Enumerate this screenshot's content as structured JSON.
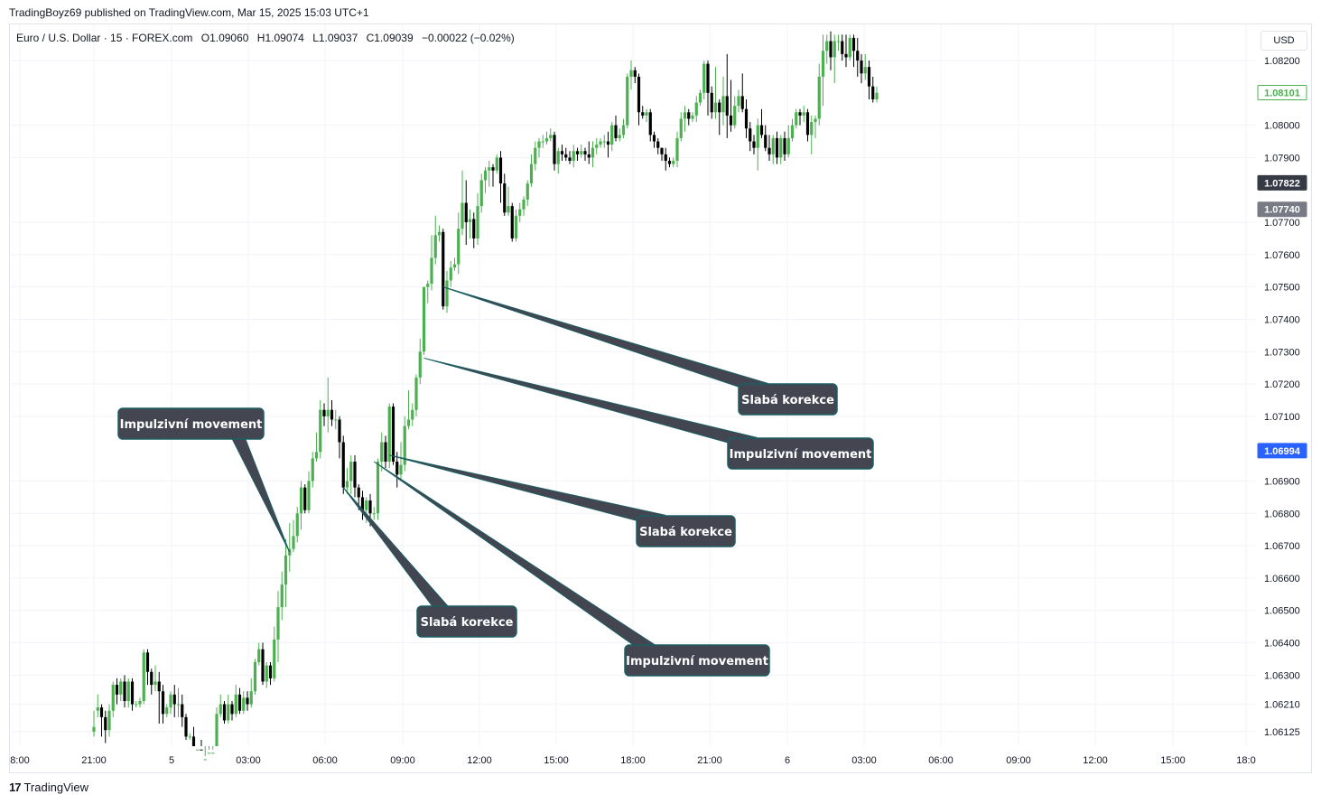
{
  "header": {
    "published": "TradingBoyz69 published on TradingView.com, Mar 15, 2025 15:03 UTC+1"
  },
  "legend": {
    "symbol": "Euro / U.S. Dollar · 15 · FOREX.com",
    "open": "O1.09060",
    "high": "H1.09074",
    "low": "L1.09037",
    "close": "C1.09039",
    "change": "−0.00022 (−0.02%)"
  },
  "currency": "USD",
  "brand": {
    "logo": "17",
    "name": "TradingView"
  },
  "colors": {
    "up": "#4caf50",
    "down": "#000000",
    "grid": "#f0f3fa",
    "callout_bg": "#434651",
    "callout_border": "#1b5e63",
    "callout_line": "#1b5e63"
  },
  "chart_data": {
    "type": "candlestick",
    "y_axis": {
      "labels": [
        {
          "text": "1.08200",
          "value": 1.082
        },
        {
          "text": "1.08000",
          "value": 1.08
        },
        {
          "text": "1.07900",
          "value": 1.079
        },
        {
          "text": "1.07700",
          "value": 1.077
        },
        {
          "text": "1.07600",
          "value": 1.076
        },
        {
          "text": "1.07500",
          "value": 1.075
        },
        {
          "text": "1.07400",
          "value": 1.074
        },
        {
          "text": "1.07300",
          "value": 1.073
        },
        {
          "text": "1.07200",
          "value": 1.072
        },
        {
          "text": "1.07100",
          "value": 1.071
        },
        {
          "text": "1.06900",
          "value": 1.069
        },
        {
          "text": "1.06800",
          "value": 1.068
        },
        {
          "text": "1.06700",
          "value": 1.067
        },
        {
          "text": "1.06600",
          "value": 1.066
        },
        {
          "text": "1.06500",
          "value": 1.065
        },
        {
          "text": "1.06400",
          "value": 1.064
        },
        {
          "text": "1.06300",
          "value": 1.063
        },
        {
          "text": "1.06210",
          "value": 1.0621
        },
        {
          "text": "1.06125",
          "value": 1.06125
        }
      ],
      "price_tags": [
        {
          "text": "1.08101",
          "value": 1.08101,
          "style": "outline-green"
        },
        {
          "text": "1.07822",
          "value": 1.07822,
          "style": "dark"
        },
        {
          "text": "1.07740",
          "value": 1.0774,
          "style": "gray"
        },
        {
          "text": "1.06994",
          "value": 1.06994,
          "style": "blue"
        }
      ]
    },
    "x_axis": {
      "labels": [
        "8:00",
        "21:00",
        "5",
        "03:00",
        "06:00",
        "09:00",
        "12:00",
        "15:00",
        "18:00",
        "21:00",
        "6",
        "03:00",
        "06:00",
        "09:00",
        "12:00",
        "15:00",
        "18:0"
      ]
    },
    "candles": [
      [
        1.06125,
        1.0614,
        1.0611,
        1.0619
      ],
      [
        1.0619,
        1.062,
        1.0617,
        1.0624
      ],
      [
        1.062,
        1.0617,
        1.0611,
        1.0621
      ],
      [
        1.0617,
        1.0613,
        1.0609,
        1.0619
      ],
      [
        1.0613,
        1.0619,
        1.0611,
        1.0621
      ],
      [
        1.0619,
        1.0627,
        1.0617,
        1.0628
      ],
      [
        1.0627,
        1.0624,
        1.0621,
        1.0629
      ],
      [
        1.0624,
        1.0628,
        1.0622,
        1.0629
      ],
      [
        1.0628,
        1.0622,
        1.062,
        1.063
      ],
      [
        1.0622,
        1.0628,
        1.062,
        1.0629
      ],
      [
        1.0628,
        1.0621,
        1.0619,
        1.0629
      ],
      [
        1.0621,
        1.0621,
        1.062,
        1.0622
      ],
      [
        1.0621,
        1.0622,
        1.062,
        1.0623
      ],
      [
        1.0622,
        1.0637,
        1.0621,
        1.0638
      ],
      [
        1.0637,
        1.0631,
        1.0627,
        1.0638
      ],
      [
        1.0631,
        1.0627,
        1.0624,
        1.0632
      ],
      [
        1.0627,
        1.0628,
        1.0625,
        1.0633
      ],
      [
        1.0628,
        1.0625,
        1.0615,
        1.0631
      ],
      [
        1.0625,
        1.0618,
        1.0615,
        1.0627
      ],
      [
        1.0618,
        1.062,
        1.0617,
        1.0621
      ],
      [
        1.062,
        1.0624,
        1.0618,
        1.0625
      ],
      [
        1.0624,
        1.0621,
        1.0617,
        1.0627
      ],
      [
        1.0621,
        1.0621,
        1.0617,
        1.0626
      ],
      [
        1.0621,
        1.0617,
        1.0614,
        1.0624
      ],
      [
        1.0617,
        1.0611,
        1.061,
        1.0618
      ],
      [
        1.0611,
        1.0611,
        1.061,
        1.0612
      ],
      [
        1.0611,
        1.0607,
        1.0605,
        1.0614
      ],
      [
        1.0607,
        1.0607,
        1.0605,
        1.0608
      ],
      [
        1.0607,
        1.0604,
        1.0603,
        1.061
      ],
      [
        1.0604,
        1.0604,
        1.0603,
        1.0605
      ],
      [
        1.0604,
        1.0606,
        1.0603,
        1.0607
      ],
      [
        1.0606,
        1.0606,
        1.0605,
        1.0607
      ],
      [
        1.0606,
        1.0618,
        1.0605,
        1.062
      ],
      [
        1.0618,
        1.0621,
        1.0617,
        1.0624
      ],
      [
        1.0621,
        1.0616,
        1.0615,
        1.0622
      ],
      [
        1.0616,
        1.0621,
        1.0615,
        1.0624
      ],
      [
        1.0621,
        1.0618,
        1.0616,
        1.0622
      ],
      [
        1.0618,
        1.0624,
        1.0617,
        1.0627
      ],
      [
        1.0624,
        1.0619,
        1.0618,
        1.0626
      ],
      [
        1.0619,
        1.0623,
        1.0618,
        1.0625
      ],
      [
        1.0623,
        1.0621,
        1.0619,
        1.0625
      ],
      [
        1.0621,
        1.0625,
        1.062,
        1.0629
      ],
      [
        1.0625,
        1.0634,
        1.0624,
        1.0635
      ],
      [
        1.0634,
        1.0638,
        1.0633,
        1.064
      ],
      [
        1.0638,
        1.0628,
        1.0627,
        1.064
      ],
      [
        1.0628,
        1.0633,
        1.0626,
        1.0634
      ],
      [
        1.0633,
        1.0629,
        1.0627,
        1.0634
      ],
      [
        1.0629,
        1.0641,
        1.0628,
        1.0645
      ],
      [
        1.0641,
        1.0651,
        1.0634,
        1.0656
      ],
      [
        1.0651,
        1.0658,
        1.0647,
        1.0662
      ],
      [
        1.0658,
        1.0667,
        1.0651,
        1.0672
      ],
      [
        1.0667,
        1.0669,
        1.0662,
        1.0677
      ],
      [
        1.0669,
        1.0673,
        1.0668,
        1.0678
      ],
      [
        1.0673,
        1.068,
        1.0671,
        1.0682
      ],
      [
        1.068,
        1.0688,
        1.0675,
        1.069
      ],
      [
        1.0688,
        1.0681,
        1.068,
        1.0689
      ],
      [
        1.0681,
        1.069,
        1.068,
        1.0693
      ],
      [
        1.069,
        1.0697,
        1.0688,
        1.0699
      ],
      [
        1.0697,
        1.0699,
        1.0696,
        1.0705
      ],
      [
        1.0699,
        1.0712,
        1.0697,
        1.0715
      ],
      [
        1.0712,
        1.071,
        1.0707,
        1.0714
      ],
      [
        1.071,
        1.0712,
        1.0705,
        1.0722
      ],
      [
        1.0712,
        1.0709,
        1.0707,
        1.0715
      ],
      [
        1.0709,
        1.0709,
        1.0706,
        1.0712
      ],
      [
        1.0709,
        1.0702,
        1.0697,
        1.071
      ],
      [
        1.0702,
        1.0688,
        1.0686,
        1.0704
      ],
      [
        1.0688,
        1.069,
        1.0686,
        1.0694
      ],
      [
        1.069,
        1.0696,
        1.0686,
        1.0698
      ],
      [
        1.0696,
        1.0688,
        1.0685,
        1.0698
      ],
      [
        1.0688,
        1.0685,
        1.0681,
        1.0689
      ],
      [
        1.0685,
        1.0681,
        1.0678,
        1.0687
      ],
      [
        1.0681,
        1.0684,
        1.0677,
        1.0685
      ],
      [
        1.0684,
        1.068,
        1.0676,
        1.0686
      ],
      [
        1.068,
        1.068,
        1.0678,
        1.0682
      ],
      [
        1.068,
        1.0696,
        1.0678,
        1.0697
      ],
      [
        1.0696,
        1.0702,
        1.0693,
        1.0705
      ],
      [
        1.0702,
        1.0696,
        1.0694,
        1.0704
      ],
      [
        1.0696,
        1.0713,
        1.0694,
        1.0714
      ],
      [
        1.0713,
        1.0696,
        1.0695,
        1.0714
      ],
      [
        1.0696,
        1.0692,
        1.0688,
        1.0699
      ],
      [
        1.0692,
        1.0695,
        1.069,
        1.0702
      ],
      [
        1.0695,
        1.0707,
        1.0693,
        1.071
      ],
      [
        1.0707,
        1.0709,
        1.0706,
        1.0718
      ],
      [
        1.0709,
        1.0712,
        1.0707,
        1.0714
      ],
      [
        1.0712,
        1.0722,
        1.071,
        1.0723
      ],
      [
        1.0722,
        1.073,
        1.072,
        1.0734
      ],
      [
        1.073,
        1.075,
        1.0729,
        1.075
      ],
      [
        1.075,
        1.0751,
        1.0745,
        1.0752
      ],
      [
        1.0751,
        1.0759,
        1.0749,
        1.0766
      ],
      [
        1.0759,
        1.0766,
        1.0757,
        1.0772
      ],
      [
        1.0766,
        1.0767,
        1.0764,
        1.0769
      ],
      [
        1.0767,
        1.0744,
        1.0743,
        1.0768
      ],
      [
        1.0744,
        1.0752,
        1.0742,
        1.0755
      ],
      [
        1.0752,
        1.0756,
        1.075,
        1.0758
      ],
      [
        1.0756,
        1.0757,
        1.0755,
        1.0759
      ],
      [
        1.0757,
        1.0768,
        1.0754,
        1.0773
      ],
      [
        1.0768,
        1.0776,
        1.0766,
        1.0786
      ],
      [
        1.0776,
        1.077,
        1.0763,
        1.0783
      ],
      [
        1.077,
        1.0771,
        1.0765,
        1.0774
      ],
      [
        1.0771,
        1.0765,
        1.0762,
        1.0773
      ],
      [
        1.0765,
        1.0775,
        1.0763,
        1.0779
      ],
      [
        1.0775,
        1.0783,
        1.0773,
        1.0785
      ],
      [
        1.0783,
        1.0786,
        1.0779,
        1.0787
      ],
      [
        1.0786,
        1.0787,
        1.0781,
        1.0789
      ],
      [
        1.0787,
        1.0786,
        1.0781,
        1.0788
      ],
      [
        1.0786,
        1.079,
        1.0785,
        1.0791
      ],
      [
        1.079,
        1.0782,
        1.0776,
        1.0792
      ],
      [
        1.0782,
        1.0773,
        1.0772,
        1.0785
      ],
      [
        1.0773,
        1.0775,
        1.0772,
        1.0781
      ],
      [
        1.0775,
        1.0765,
        1.0764,
        1.0776
      ],
      [
        1.0765,
        1.0772,
        1.0764,
        1.0774
      ],
      [
        1.0772,
        1.0774,
        1.077,
        1.0776
      ],
      [
        1.0774,
        1.0777,
        1.0772,
        1.0778
      ],
      [
        1.0777,
        1.0782,
        1.0775,
        1.0783
      ],
      [
        1.0782,
        1.0788,
        1.0781,
        1.0791
      ],
      [
        1.0788,
        1.0793,
        1.0786,
        1.0795
      ],
      [
        1.0793,
        1.0795,
        1.079,
        1.0796
      ],
      [
        1.0795,
        1.0795,
        1.0793,
        1.0797
      ],
      [
        1.0795,
        1.0796,
        1.0794,
        1.0798
      ],
      [
        1.0796,
        1.0797,
        1.0795,
        1.0799
      ],
      [
        1.0797,
        1.0788,
        1.0786,
        1.0798
      ],
      [
        1.0788,
        1.0792,
        1.0785,
        1.0793
      ],
      [
        1.0792,
        1.0791,
        1.0789,
        1.0794
      ],
      [
        1.0791,
        1.079,
        1.0789,
        1.0793
      ],
      [
        1.079,
        1.0789,
        1.0788,
        1.0792
      ],
      [
        1.0789,
        1.0792,
        1.0787,
        1.0794
      ],
      [
        1.0792,
        1.0791,
        1.0789,
        1.0793
      ],
      [
        1.0791,
        1.0792,
        1.079,
        1.0794
      ],
      [
        1.0792,
        1.0791,
        1.0789,
        1.0793
      ],
      [
        1.0791,
        1.079,
        1.0788,
        1.0795
      ],
      [
        1.079,
        1.0793,
        1.0787,
        1.0795
      ],
      [
        1.0793,
        1.0794,
        1.0791,
        1.0796
      ],
      [
        1.0794,
        1.0795,
        1.0793,
        1.0796
      ],
      [
        1.0795,
        1.0795,
        1.0793,
        1.0797
      ],
      [
        1.0795,
        1.0794,
        1.079,
        1.0798
      ],
      [
        1.0794,
        1.08,
        1.0792,
        1.0801
      ],
      [
        1.08,
        1.0796,
        1.0795,
        1.0803
      ],
      [
        1.0796,
        1.0797,
        1.0795,
        1.0799
      ],
      [
        1.0797,
        1.08,
        1.0796,
        1.0802
      ],
      [
        1.08,
        1.0815,
        1.0799,
        1.0816
      ],
      [
        1.0815,
        1.0817,
        1.0811,
        1.082
      ],
      [
        1.0817,
        1.0815,
        1.0813,
        1.0818
      ],
      [
        1.0815,
        1.0804,
        1.08,
        1.0816
      ],
      [
        1.0804,
        1.0803,
        1.0802,
        1.0806
      ],
      [
        1.0803,
        1.0804,
        1.0801,
        1.0805
      ],
      [
        1.0804,
        1.0797,
        1.0795,
        1.0805
      ],
      [
        1.0797,
        1.0795,
        1.0793,
        1.0798
      ],
      [
        1.0795,
        1.0793,
        1.0791,
        1.0796
      ],
      [
        1.0793,
        1.0791,
        1.0789,
        1.0793
      ],
      [
        1.0791,
        1.0789,
        1.0786,
        1.0793
      ],
      [
        1.0789,
        1.0788,
        1.0787,
        1.079
      ],
      [
        1.0788,
        1.0789,
        1.0787,
        1.079
      ],
      [
        1.0789,
        1.0796,
        1.0787,
        1.0798
      ],
      [
        1.0796,
        1.0802,
        1.0795,
        1.0804
      ],
      [
        1.0802,
        1.0804,
        1.0798,
        1.0806
      ],
      [
        1.0804,
        1.0802,
        1.08,
        1.0805
      ],
      [
        1.0802,
        1.0803,
        1.0801,
        1.0804
      ],
      [
        1.0803,
        1.0807,
        1.0801,
        1.0809
      ],
      [
        1.0807,
        1.081,
        1.0806,
        1.0811
      ],
      [
        1.081,
        1.0819,
        1.0808,
        1.082
      ],
      [
        1.0819,
        1.081,
        1.0803,
        1.082
      ],
      [
        1.081,
        1.0804,
        1.0802,
        1.0812
      ],
      [
        1.0804,
        1.0807,
        1.0802,
        1.0818
      ],
      [
        1.0807,
        1.0804,
        1.0797,
        1.0808
      ],
      [
        1.0804,
        1.0809,
        1.08,
        1.0815
      ],
      [
        1.0809,
        1.0803,
        1.0796,
        1.0822
      ],
      [
        1.0803,
        1.08,
        1.0798,
        1.0814
      ],
      [
        1.08,
        1.0806,
        1.0799,
        1.0809
      ],
      [
        1.0806,
        1.0809,
        1.0804,
        1.0811
      ],
      [
        1.0809,
        1.0805,
        1.0804,
        1.0816
      ],
      [
        1.0805,
        1.0799,
        1.0796,
        1.0808
      ],
      [
        1.0799,
        1.0795,
        1.0792,
        1.0801
      ],
      [
        1.0795,
        1.0793,
        1.0791,
        1.0797
      ],
      [
        1.0793,
        1.08,
        1.0786,
        1.0802
      ],
      [
        1.08,
        1.0797,
        1.0796,
        1.0805
      ],
      [
        1.0797,
        1.0793,
        1.0792,
        1.08
      ],
      [
        1.0793,
        1.0791,
        1.0789,
        1.0797
      ],
      [
        1.0791,
        1.0796,
        1.0788,
        1.0797
      ],
      [
        1.0796,
        1.079,
        1.0788,
        1.0798
      ],
      [
        1.079,
        1.0796,
        1.0788,
        1.0797
      ],
      [
        1.0796,
        1.0791,
        1.0789,
        1.0798
      ],
      [
        1.0791,
        1.0796,
        1.079,
        1.08
      ],
      [
        1.0796,
        1.08,
        1.0795,
        1.0802
      ],
      [
        1.08,
        1.0804,
        1.0799,
        1.0805
      ],
      [
        1.0804,
        1.0803,
        1.08,
        1.0805
      ],
      [
        1.0803,
        1.0804,
        1.0801,
        1.0806
      ],
      [
        1.0804,
        1.0797,
        1.0795,
        1.0805
      ],
      [
        1.0797,
        1.0801,
        1.0791,
        1.0803
      ],
      [
        1.0801,
        1.0802,
        1.0796,
        1.0803
      ],
      [
        1.0802,
        1.0815,
        1.08,
        1.0819
      ],
      [
        1.0815,
        1.0823,
        1.0806,
        1.0828
      ],
      [
        1.0823,
        1.0826,
        1.0819,
        1.0828
      ],
      [
        1.0826,
        1.0821,
        1.0817,
        1.0829
      ],
      [
        1.0821,
        1.0826,
        1.0813,
        1.0828
      ],
      [
        1.0826,
        1.0826,
        1.0823,
        1.0828
      ],
      [
        1.0826,
        1.0822,
        1.082,
        1.0828
      ],
      [
        1.0822,
        1.0821,
        1.0818,
        1.0828
      ],
      [
        1.0821,
        1.0827,
        1.082,
        1.0828
      ],
      [
        1.0827,
        1.0823,
        1.0818,
        1.0828
      ],
      [
        1.0823,
        1.082,
        1.0815,
        1.0827
      ],
      [
        1.082,
        1.0816,
        1.0813,
        1.0822
      ],
      [
        1.0816,
        1.0818,
        1.0814,
        1.0822
      ],
      [
        1.0818,
        1.0812,
        1.0808,
        1.082
      ],
      [
        1.0812,
        1.0808,
        1.0807,
        1.0815
      ],
      [
        1.0808,
        1.081,
        1.0807,
        1.0812
      ]
    ]
  },
  "annotations": [
    {
      "label": "Impulzivní movement",
      "target_candle": 51,
      "target_price": 1.0668
    },
    {
      "label": "Slabá korekce",
      "target_candle": 65,
      "target_price": 1.0688
    },
    {
      "label": "Slabá korekce",
      "target_candle": 77,
      "target_price": 1.0698
    },
    {
      "label": "Impulzivní movement",
      "target_candle": 73,
      "target_price": 1.0696
    },
    {
      "label": "Impulzivní movement",
      "target_candle": 86,
      "target_price": 1.0728
    },
    {
      "label": "Slabá korekce",
      "target_candle": 91,
      "target_price": 1.075
    }
  ]
}
